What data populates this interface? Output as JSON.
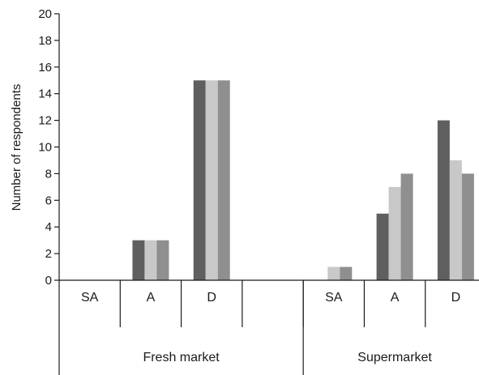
{
  "chart_data": {
    "type": "bar",
    "ylabel": "Number of respondents",
    "xlabel": "",
    "ylim": [
      0,
      20
    ],
    "yticks": [
      0,
      2,
      4,
      6,
      8,
      10,
      12,
      14,
      16,
      18,
      20
    ],
    "grid": false,
    "legend": "none",
    "groups": [
      {
        "name": "Fresh market",
        "categories": [
          "SA",
          "A",
          "D",
          ""
        ]
      },
      {
        "name": "Supermarket",
        "categories": [
          "SA",
          "A",
          "D"
        ]
      }
    ],
    "categories": [
      "SA",
      "A",
      "D",
      "",
      "SA",
      "A",
      "D"
    ],
    "series": [
      {
        "color": "#5f5f5f",
        "values": [
          0,
          3,
          15,
          0,
          0,
          5,
          12
        ]
      },
      {
        "color": "#c8c8c8",
        "values": [
          0,
          3,
          15,
          0,
          1,
          7,
          9
        ]
      },
      {
        "color": "#8f8f8f",
        "values": [
          0,
          3,
          15,
          0,
          1,
          8,
          8
        ]
      }
    ]
  }
}
